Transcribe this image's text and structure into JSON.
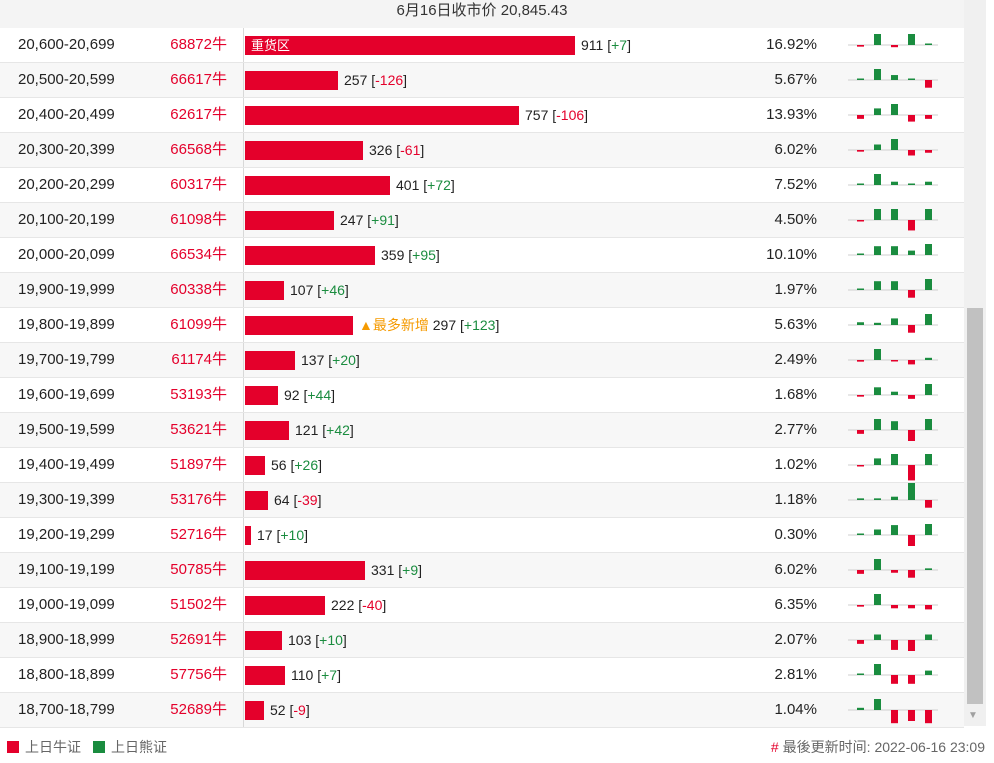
{
  "header": {
    "title": "6月16日收市价 20,845.43"
  },
  "colors": {
    "bull": "#e4002b",
    "bear": "#1a8c3f",
    "tag": "#f59a00"
  },
  "rows": [
    {
      "range": "20,600-20,699",
      "bull": "68872牛",
      "count": 911,
      "count_text": "911",
      "change": "+7",
      "pct": "16.92%",
      "label_inside": "重货区",
      "tag": "",
      "spark": [
        -0.15,
        1,
        -0.2,
        1,
        0.1
      ]
    },
    {
      "range": "20,500-20,599",
      "bull": "66617牛",
      "count": 257,
      "count_text": "257",
      "change": "-126",
      "pct": "5.67%",
      "label_inside": "",
      "tag": "",
      "spark": [
        0.05,
        1,
        0.45,
        0.1,
        -0.7
      ]
    },
    {
      "range": "20,400-20,499",
      "bull": "62617牛",
      "count": 757,
      "count_text": "757",
      "change": "-106",
      "pct": "13.93%",
      "label_inside": "",
      "tag": "",
      "spark": [
        -0.35,
        0.6,
        1,
        -0.6,
        -0.35
      ]
    },
    {
      "range": "20,300-20,399",
      "bull": "66568牛",
      "count": 326,
      "count_text": "326",
      "change": "-61",
      "pct": "6.02%",
      "label_inside": "",
      "tag": "",
      "spark": [
        -0.15,
        0.5,
        1,
        -0.5,
        -0.25
      ]
    },
    {
      "range": "20,200-20,299",
      "bull": "60317牛",
      "count": 401,
      "count_text": "401",
      "change": "+72",
      "pct": "7.52%",
      "label_inside": "",
      "tag": "",
      "spark": [
        0,
        1,
        0.3,
        0,
        0.3
      ]
    },
    {
      "range": "20,100-20,199",
      "bull": "61098牛",
      "count": 247,
      "count_text": "247",
      "change": "+91",
      "pct": "4.50%",
      "label_inside": "",
      "tag": "",
      "spark": [
        -0.1,
        1,
        1,
        -0.95,
        1
      ]
    },
    {
      "range": "20,000-20,099",
      "bull": "66534牛",
      "count": 359,
      "count_text": "359",
      "change": "+95",
      "pct": "10.10%",
      "label_inside": "",
      "tag": "",
      "spark": [
        0,
        0.8,
        0.8,
        0.4,
        1
      ]
    },
    {
      "range": "19,900-19,999",
      "bull": "60338牛",
      "count": 107,
      "count_text": "107",
      "change": "+46",
      "pct": "1.97%",
      "label_inside": "",
      "tag": "",
      "spark": [
        0.1,
        0.8,
        0.8,
        -0.7,
        1
      ]
    },
    {
      "range": "19,800-19,899",
      "bull": "61099牛",
      "count": 297,
      "count_text": "297",
      "change": "+123",
      "pct": "5.63%",
      "label_inside": "",
      "tag": "▲最多新增",
      "spark": [
        0.25,
        0.2,
        0.6,
        -0.7,
        1
      ]
    },
    {
      "range": "19,700-19,799",
      "bull": "61174牛",
      "count": 137,
      "count_text": "137",
      "change": "+20",
      "pct": "2.49%",
      "label_inside": "",
      "tag": "",
      "spark": [
        -0.15,
        1,
        -0.1,
        -0.4,
        0.2
      ]
    },
    {
      "range": "19,600-19,699",
      "bull": "53193牛",
      "count": 92,
      "count_text": "92",
      "change": "+44",
      "pct": "1.68%",
      "label_inside": "",
      "tag": "",
      "spark": [
        -0.15,
        0.7,
        0.3,
        -0.35,
        1
      ]
    },
    {
      "range": "19,500-19,599",
      "bull": "53621牛",
      "count": 121,
      "count_text": "121",
      "change": "+42",
      "pct": "2.77%",
      "label_inside": "",
      "tag": "",
      "spark": [
        -0.35,
        1,
        0.8,
        -1,
        1
      ]
    },
    {
      "range": "19,400-19,499",
      "bull": "51897牛",
      "count": 56,
      "count_text": "56",
      "change": "+26",
      "pct": "1.02%",
      "label_inside": "",
      "tag": "",
      "spark": [
        -0.1,
        0.6,
        1,
        -1.4,
        1
      ]
    },
    {
      "range": "19,300-19,399",
      "bull": "53176牛",
      "count": 64,
      "count_text": "64",
      "change": "-39",
      "pct": "1.18%",
      "label_inside": "",
      "tag": "",
      "spark": [
        0.15,
        0.15,
        0.3,
        1.6,
        -0.7
      ]
    },
    {
      "range": "19,200-19,299",
      "bull": "52716牛",
      "count": 17,
      "count_text": "17",
      "change": "+10",
      "pct": "0.30%",
      "label_inside": "",
      "tag": "",
      "spark": [
        0,
        0.5,
        0.9,
        -1,
        1
      ]
    },
    {
      "range": "19,100-19,199",
      "bull": "50785牛",
      "count": 331,
      "count_text": "331",
      "change": "+9",
      "pct": "6.02%",
      "label_inside": "",
      "tag": "",
      "spark": [
        -0.35,
        1,
        -0.25,
        -0.7,
        0.15
      ]
    },
    {
      "range": "19,000-19,099",
      "bull": "51502牛",
      "count": 222,
      "count_text": "222",
      "change": "-40",
      "pct": "6.35%",
      "label_inside": "",
      "tag": "",
      "spark": [
        -0.15,
        1,
        -0.3,
        -0.3,
        -0.4
      ]
    },
    {
      "range": "18,900-18,999",
      "bull": "52691牛",
      "count": 103,
      "count_text": "103",
      "change": "+10",
      "pct": "2.07%",
      "label_inside": "",
      "tag": "",
      "spark": [
        -0.35,
        0.5,
        -0.9,
        -1,
        0.5
      ]
    },
    {
      "range": "18,800-18,899",
      "bull": "57756牛",
      "count": 110,
      "count_text": "110",
      "change": "+7",
      "pct": "2.81%",
      "label_inside": "",
      "tag": "",
      "spark": [
        0,
        1,
        -0.8,
        -0.8,
        0.4
      ]
    },
    {
      "range": "18,700-18,799",
      "bull": "52689牛",
      "count": 52,
      "count_text": "52",
      "change": "-9",
      "pct": "1.04%",
      "label_inside": "",
      "tag": "",
      "spark": [
        0.2,
        1,
        -1.2,
        -1,
        -1.2
      ]
    }
  ],
  "legend": {
    "bull_label": "上日牛证",
    "bear_label": "上日熊证"
  },
  "footer": {
    "hash": "#",
    "updated": "最後更新时间: 2022-06-16 23:09"
  }
}
